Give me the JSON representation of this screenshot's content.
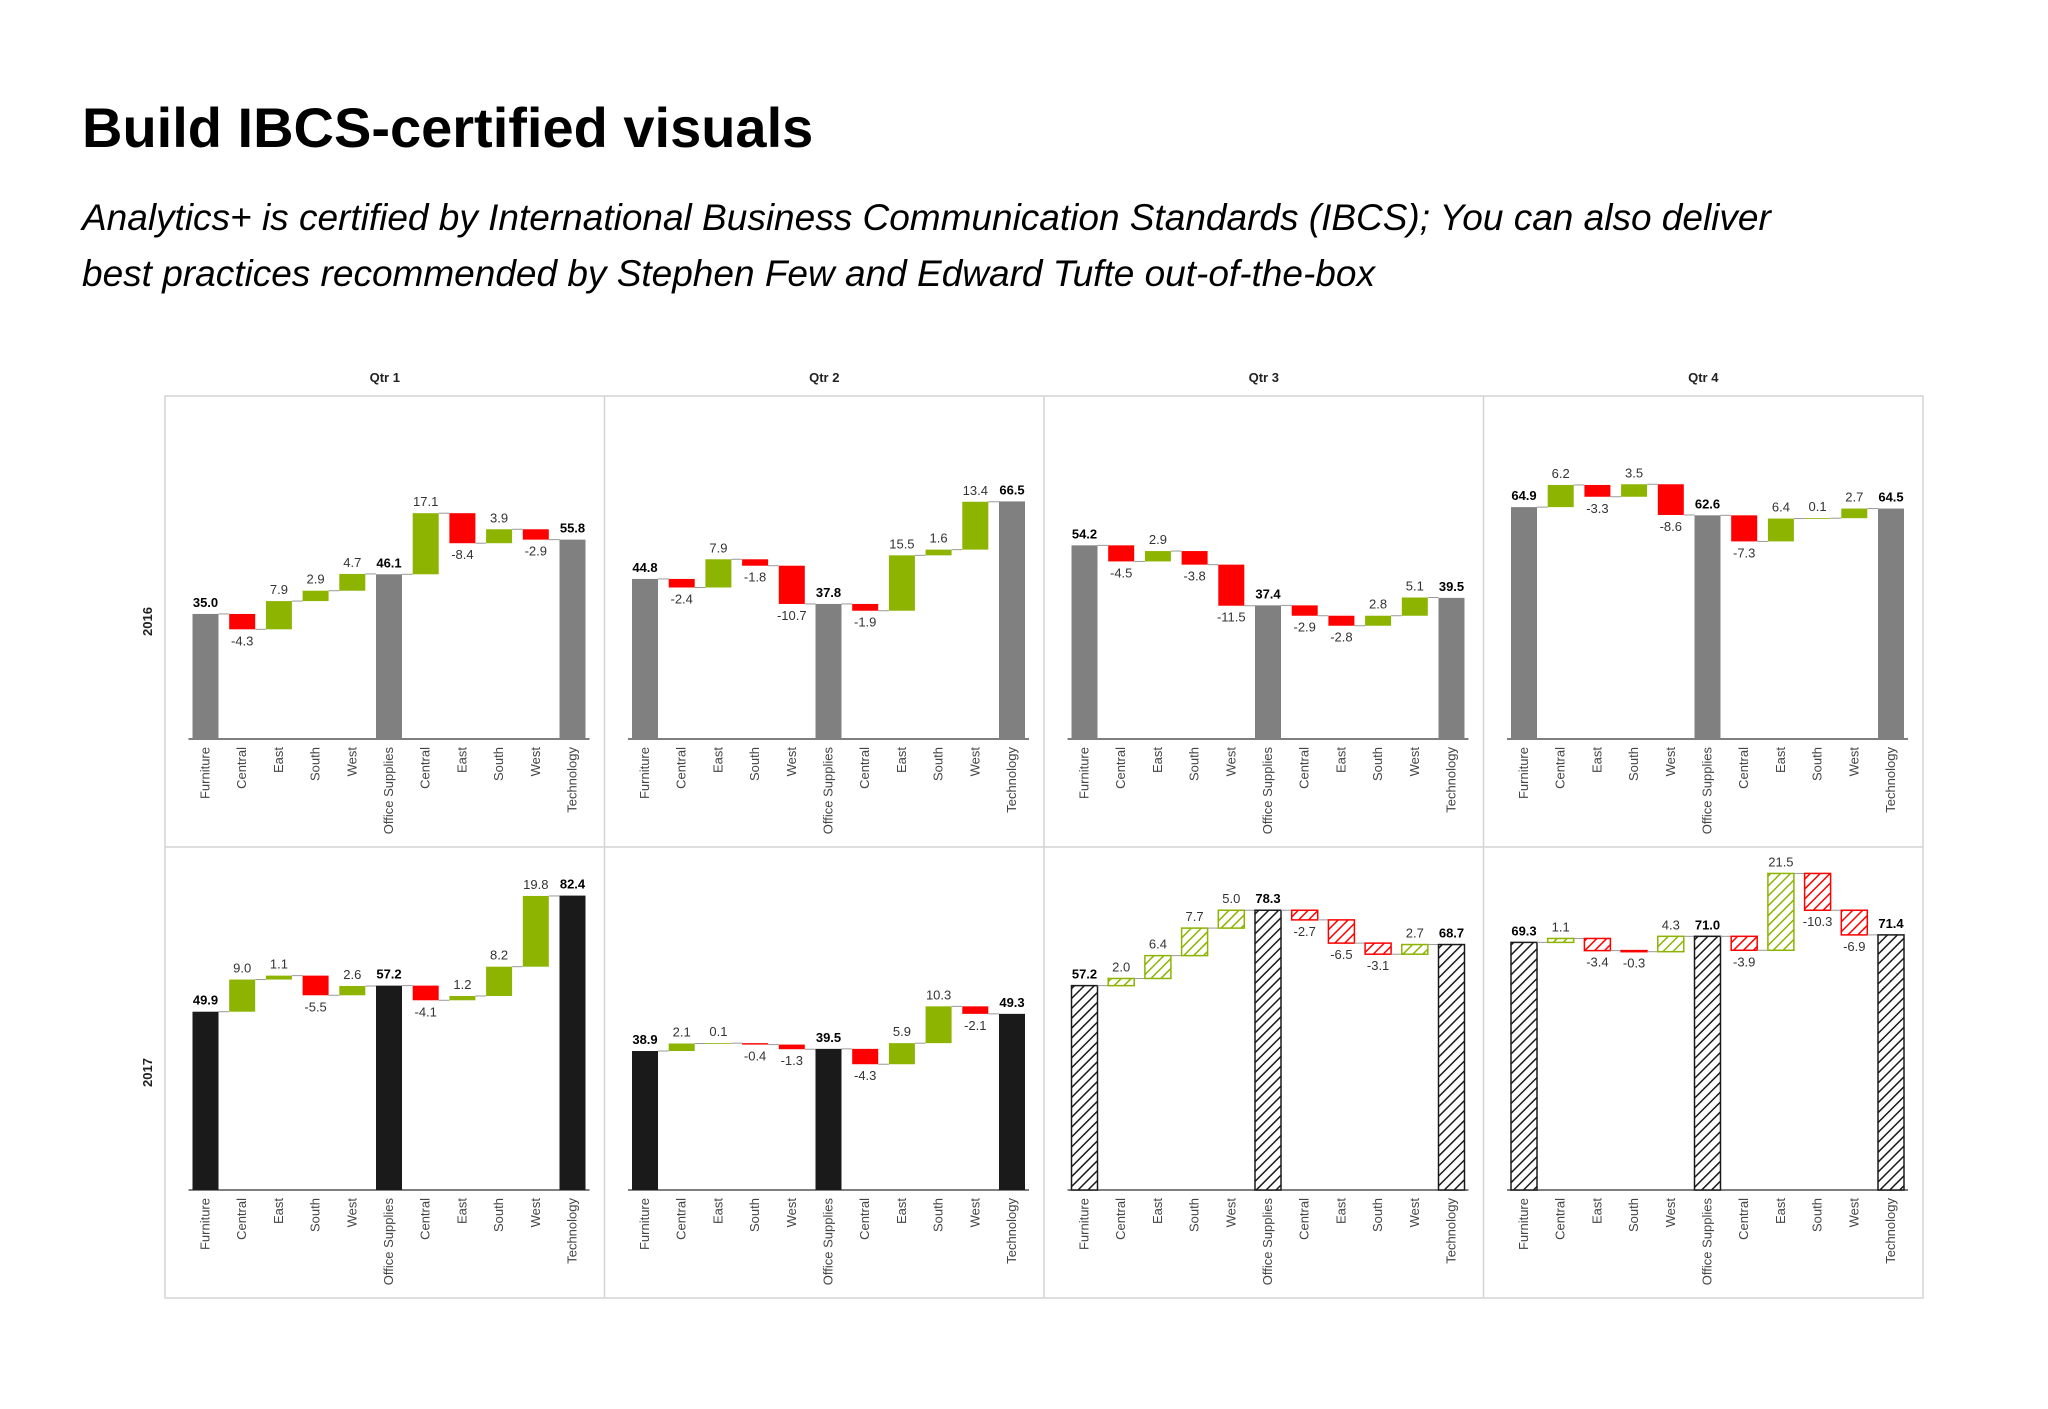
{
  "title": "Build IBCS-certified visuals",
  "subtitle_lines": [
    "Analytics+ is certified by International Business Communication Standards (IBCS); You can also deliver",
    "best practices recommended by Stephen Few and Edward Tufte out-of-the-box"
  ],
  "columns": [
    "Qtr 1",
    "Qtr 2",
    "Qtr 3",
    "Qtr 4"
  ],
  "rows": [
    "2016",
    "2017"
  ],
  "chart_data": [
    {
      "type": "waterfall",
      "categories": [
        "Furniture",
        "Central",
        "East",
        "South",
        "West",
        "Office Supplies",
        "Central",
        "East",
        "South",
        "West",
        "Technology"
      ],
      "measure": [
        "absolute",
        "relative",
        "relative",
        "relative",
        "relative",
        "absolute",
        "relative",
        "relative",
        "relative",
        "relative",
        "absolute"
      ],
      "values": [
        35.0,
        -4.3,
        7.9,
        2.9,
        4.7,
        46.1,
        17.1,
        -8.4,
        3.9,
        -2.9,
        55.8
      ],
      "value_labels": [
        "35.0",
        "-4.3",
        "7.9",
        "2.9",
        "4.7",
        "46.1",
        "17.1",
        "-8.4",
        "3.9",
        "-2.9",
        "55.8"
      ],
      "ylim": [
        0,
        96
      ],
      "total_color": "#808080",
      "increase_color": "#8cb400",
      "decrease_color": "#ff0000",
      "pattern": "solid"
    },
    {
      "type": "waterfall",
      "categories": [
        "Furniture",
        "Central",
        "East",
        "South",
        "West",
        "Office Supplies",
        "Central",
        "East",
        "South",
        "West",
        "Technology"
      ],
      "measure": [
        "absolute",
        "relative",
        "relative",
        "relative",
        "relative",
        "absolute",
        "relative",
        "relative",
        "relative",
        "relative",
        "absolute"
      ],
      "values": [
        44.8,
        -2.4,
        7.9,
        -1.8,
        -10.7,
        37.8,
        -1.9,
        15.5,
        1.6,
        13.4,
        66.5
      ],
      "value_labels": [
        "44.8",
        "-2.4",
        "7.9",
        "-1.8",
        "-10.7",
        "37.8",
        "-1.9",
        "15.5",
        "1.6",
        "13.4",
        "66.5"
      ],
      "ylim": [
        0,
        96
      ],
      "total_color": "#808080",
      "increase_color": "#8cb400",
      "decrease_color": "#ff0000",
      "pattern": "solid"
    },
    {
      "type": "waterfall",
      "categories": [
        "Furniture",
        "Central",
        "East",
        "South",
        "West",
        "Office Supplies",
        "Central",
        "East",
        "South",
        "West",
        "Technology"
      ],
      "measure": [
        "absolute",
        "relative",
        "relative",
        "relative",
        "relative",
        "absolute",
        "relative",
        "relative",
        "relative",
        "relative",
        "absolute"
      ],
      "values": [
        54.2,
        -4.5,
        2.9,
        -3.8,
        -11.5,
        37.4,
        -2.9,
        -2.8,
        2.8,
        5.1,
        39.5
      ],
      "value_labels": [
        "54.2",
        "-4.5",
        "2.9",
        "-3.8",
        "-11.5",
        "37.4",
        "-2.9",
        "-2.8",
        "2.8",
        "5.1",
        "39.5"
      ],
      "ylim": [
        0,
        96
      ],
      "total_color": "#808080",
      "increase_color": "#8cb400",
      "decrease_color": "#ff0000",
      "pattern": "solid"
    },
    {
      "type": "waterfall",
      "categories": [
        "Furniture",
        "Central",
        "East",
        "South",
        "West",
        "Office Supplies",
        "Central",
        "East",
        "South",
        "West",
        "Technology"
      ],
      "measure": [
        "absolute",
        "relative",
        "relative",
        "relative",
        "relative",
        "absolute",
        "relative",
        "relative",
        "relative",
        "relative",
        "absolute"
      ],
      "values": [
        64.9,
        6.2,
        -3.3,
        3.5,
        -8.6,
        62.6,
        -7.3,
        6.4,
        0.1,
        2.7,
        64.5
      ],
      "value_labels": [
        "64.9",
        "6.2",
        "-3.3",
        "3.5",
        "-8.6",
        "62.6",
        "-7.3",
        "6.4",
        "0.1",
        "2.7",
        "64.5"
      ],
      "ylim": [
        0,
        96
      ],
      "total_color": "#808080",
      "increase_color": "#8cb400",
      "decrease_color": "#ff0000",
      "pattern": "solid"
    },
    {
      "type": "waterfall",
      "categories": [
        "Furniture",
        "Central",
        "East",
        "South",
        "West",
        "Office Supplies",
        "Central",
        "East",
        "South",
        "West",
        "Technology"
      ],
      "measure": [
        "absolute",
        "relative",
        "relative",
        "relative",
        "relative",
        "absolute",
        "relative",
        "relative",
        "relative",
        "relative",
        "absolute"
      ],
      "values": [
        49.9,
        9.0,
        1.1,
        -5.5,
        2.6,
        57.2,
        -4.1,
        1.2,
        8.2,
        19.8,
        82.4
      ],
      "value_labels": [
        "49.9",
        "9.0",
        "1.1",
        "-5.5",
        "2.6",
        "57.2",
        "-4.1",
        "1.2",
        "8.2",
        "19.8",
        "82.4"
      ],
      "ylim": [
        0,
        96
      ],
      "total_color": "#1a1a1a",
      "increase_color": "#8cb400",
      "decrease_color": "#ff0000",
      "pattern": "solid"
    },
    {
      "type": "waterfall",
      "categories": [
        "Furniture",
        "Central",
        "East",
        "South",
        "West",
        "Office Supplies",
        "Central",
        "East",
        "South",
        "West",
        "Technology"
      ],
      "measure": [
        "absolute",
        "relative",
        "relative",
        "relative",
        "relative",
        "absolute",
        "relative",
        "relative",
        "relative",
        "relative",
        "absolute"
      ],
      "values": [
        38.9,
        2.1,
        0.1,
        -0.4,
        -1.3,
        39.5,
        -4.3,
        5.9,
        10.3,
        -2.1,
        49.3
      ],
      "value_labels": [
        "38.9",
        "2.1",
        "0.1",
        "-0.4",
        "-1.3",
        "39.5",
        "-4.3",
        "5.9",
        "10.3",
        "-2.1",
        "49.3"
      ],
      "ylim": [
        0,
        96
      ],
      "total_color": "#1a1a1a",
      "increase_color": "#8cb400",
      "decrease_color": "#ff0000",
      "pattern": "solid"
    },
    {
      "type": "waterfall",
      "categories": [
        "Furniture",
        "Central",
        "East",
        "South",
        "West",
        "Office Supplies",
        "Central",
        "East",
        "South",
        "West",
        "Technology"
      ],
      "measure": [
        "absolute",
        "relative",
        "relative",
        "relative",
        "relative",
        "absolute",
        "relative",
        "relative",
        "relative",
        "relative",
        "absolute"
      ],
      "values": [
        57.2,
        2.0,
        6.4,
        7.7,
        5.0,
        78.3,
        -2.7,
        -6.5,
        -3.1,
        2.7,
        68.7
      ],
      "value_labels": [
        "57.2",
        "2.0",
        "6.4",
        "7.7",
        "5.0",
        "78.3",
        "-2.7",
        "-6.5",
        "-3.1",
        "2.7",
        "68.7"
      ],
      "ylim": [
        0,
        96
      ],
      "total_color": "#1a1a1a",
      "increase_color": "#8cb400",
      "decrease_color": "#ff0000",
      "pattern": "hatched"
    },
    {
      "type": "waterfall",
      "categories": [
        "Furniture",
        "Central",
        "East",
        "South",
        "West",
        "Office Supplies",
        "Central",
        "East",
        "South",
        "West",
        "Technology"
      ],
      "measure": [
        "absolute",
        "relative",
        "relative",
        "relative",
        "relative",
        "absolute",
        "relative",
        "relative",
        "relative",
        "relative",
        "absolute"
      ],
      "values": [
        69.3,
        1.1,
        -3.4,
        -0.3,
        4.3,
        71.0,
        -3.9,
        21.5,
        -10.3,
        -6.9,
        71.4
      ],
      "value_labels": [
        "69.3",
        "1.1",
        "-3.4",
        "-0.3",
        "4.3",
        "71.0",
        "-3.9",
        "21.5",
        "-10.3",
        "-6.9",
        "71.4"
      ],
      "ylim": [
        0,
        96
      ],
      "total_color": "#1a1a1a",
      "increase_color": "#8cb400",
      "decrease_color": "#ff0000",
      "pattern": "hatched"
    }
  ]
}
